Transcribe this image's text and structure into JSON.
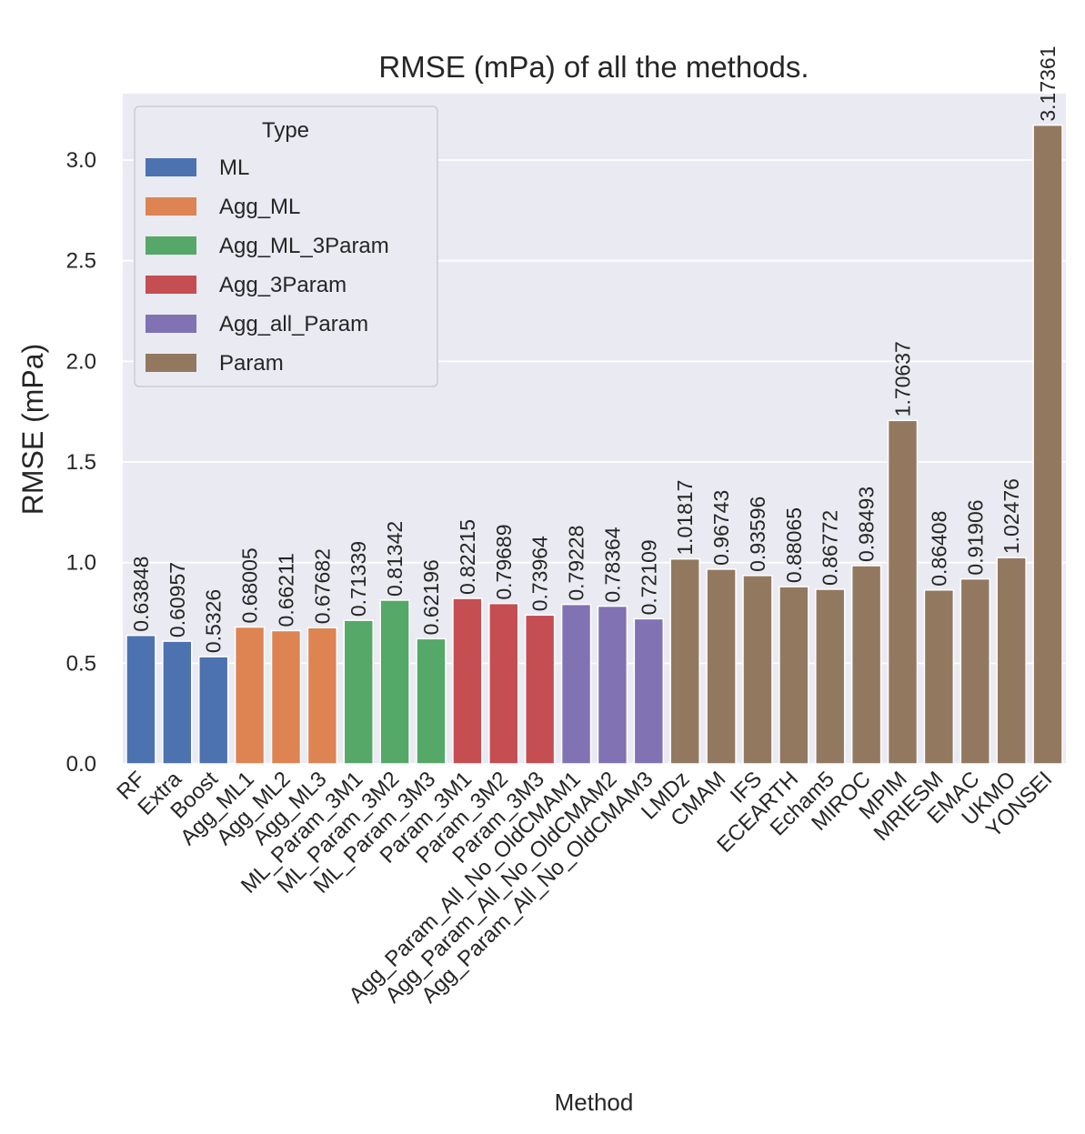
{
  "chart_data": {
    "type": "bar",
    "title": "RMSE (mPa) of all the methods.",
    "xlabel": "Method",
    "ylabel": "RMSE (mPa)",
    "ylim": [
      0,
      3.33
    ],
    "yticks": [
      "0.0",
      "0.5",
      "1.0",
      "1.5",
      "2.0",
      "2.5",
      "3.0"
    ],
    "grid": true,
    "legend": {
      "title": "Type",
      "placement": "top-left",
      "entries": [
        {
          "name": "ML",
          "color": "#4c72b0"
        },
        {
          "name": "Agg_ML",
          "color": "#dd8452"
        },
        {
          "name": "Agg_ML_3Param",
          "color": "#55a868"
        },
        {
          "name": "Agg_3Param",
          "color": "#c44e52"
        },
        {
          "name": "Agg_all_Param",
          "color": "#8172b3"
        },
        {
          "name": "Param",
          "color": "#937860"
        }
      ]
    },
    "categories": [
      "RF",
      "Extra",
      "Boost",
      "Agg_ML1",
      "Agg_ML2",
      "Agg_ML3",
      "ML_Param_3M1",
      "ML_Param_3M2",
      "ML_Param_3M3",
      "Param_3M1",
      "Param_3M2",
      "Param_3M3",
      "Agg_Param_All_No_OldCMAM1",
      "Agg_Param_All_No_OldCMAM2",
      "Agg_Param_All_No_OldCMAM3",
      "LMDz",
      "CMAM",
      "IFS",
      "ECEARTH",
      "Echam5",
      "MIROC",
      "MPIM",
      "MRIESM",
      "EMAC",
      "UKMO",
      "YONSEI"
    ],
    "values": [
      0.63848,
      0.60957,
      0.5326,
      0.68005,
      0.66211,
      0.67682,
      0.71339,
      0.81342,
      0.62196,
      0.82215,
      0.79689,
      0.73964,
      0.79228,
      0.78364,
      0.72109,
      1.01817,
      0.96743,
      0.93596,
      0.88065,
      0.86772,
      0.98493,
      1.70637,
      0.86408,
      0.91906,
      1.02476,
      3.17361
    ],
    "value_labels": [
      "0.63848",
      "0.60957",
      "0.5326",
      "0.68005",
      "0.66211",
      "0.67682",
      "0.71339",
      "0.81342",
      "0.62196",
      "0.82215",
      "0.79689",
      "0.73964",
      "0.79228",
      "0.78364",
      "0.72109",
      "1.01817",
      "0.96743",
      "0.93596",
      "0.88065",
      "0.86772",
      "0.98493",
      "1.70637",
      "0.86408",
      "0.91906",
      "1.02476",
      "3.17361"
    ],
    "types": [
      "ML",
      "ML",
      "ML",
      "Agg_ML",
      "Agg_ML",
      "Agg_ML",
      "Agg_ML_3Param",
      "Agg_ML_3Param",
      "Agg_ML_3Param",
      "Agg_3Param",
      "Agg_3Param",
      "Agg_3Param",
      "Agg_all_Param",
      "Agg_all_Param",
      "Agg_all_Param",
      "Param",
      "Param",
      "Param",
      "Param",
      "Param",
      "Param",
      "Param",
      "Param",
      "Param",
      "Param",
      "Param"
    ],
    "plot_background": "#eaeaf2"
  }
}
